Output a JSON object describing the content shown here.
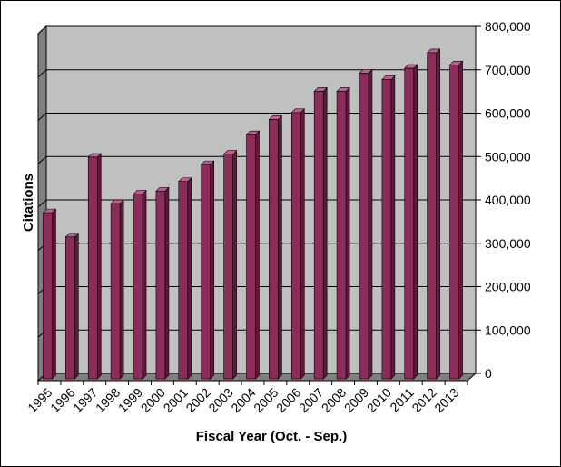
{
  "chart_data": {
    "type": "bar",
    "title": "",
    "xlabel": "Fiscal Year (Oct. - Sep.)",
    "ylabel": "Citations",
    "ylim": [
      0,
      800000
    ],
    "ytick_step": 100000,
    "ytick_labels": [
      "0",
      "100,000",
      "200,000",
      "300,000",
      "400,000",
      "500,000",
      "600,000",
      "700,000",
      "800,000"
    ],
    "grid": true,
    "categories": [
      "1995",
      "1996",
      "1997",
      "1998",
      "1999",
      "2000",
      "2001",
      "2002",
      "2003",
      "2004",
      "2005",
      "2006",
      "2007",
      "2008",
      "2009",
      "2010",
      "2011",
      "2012",
      "2013"
    ],
    "values": [
      383000,
      327000,
      511000,
      404000,
      426000,
      433000,
      455000,
      494000,
      518000,
      563000,
      598000,
      614000,
      663000,
      663000,
      705000,
      690000,
      716000,
      752000,
      724000
    ],
    "colors": {
      "bar_front": "#8b2c5a",
      "bar_top": "#c0608f",
      "bar_side": "#5e1a3c",
      "wall": "#c0c0c0",
      "side_wall": "#808080",
      "floor": "#808080",
      "grid": "#000000"
    }
  }
}
